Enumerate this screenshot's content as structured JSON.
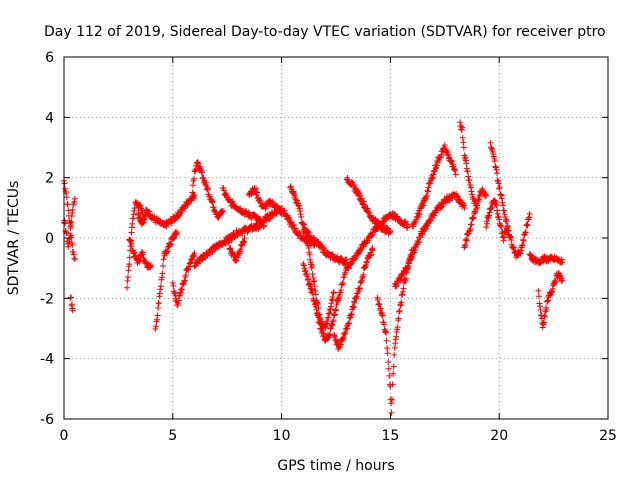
{
  "chart_data": {
    "type": "scatter",
    "title": "Day 112 of 2019, Sidereal Day-to-day VTEC variation (SDTVAR) for receiver ptro",
    "xlabel": "GPS time / hours",
    "ylabel": "SDTVAR / TECUs",
    "xlim": [
      0,
      25
    ],
    "ylim": [
      -6,
      6
    ],
    "xticks": [
      0,
      5,
      10,
      15,
      20,
      25
    ],
    "yticks": [
      -6,
      -4,
      -2,
      0,
      2,
      4,
      6
    ],
    "grid": true,
    "marker": "+",
    "series_color": "#ff0000",
    "series": [
      {
        "name": "SDTVAR",
        "tracks": [
          [
            [
              0.0,
              1.9
            ],
            [
              0.1,
              1.5
            ],
            [
              0.2,
              0.9
            ],
            [
              0.3,
              0.3
            ],
            [
              0.4,
              -0.4
            ],
            [
              0.5,
              -0.7
            ]
          ],
          [
            [
              0.0,
              0.6
            ],
            [
              0.1,
              0.2
            ],
            [
              0.2,
              -0.3
            ],
            [
              0.3,
              0.3
            ],
            [
              0.4,
              1.0
            ],
            [
              0.5,
              1.3
            ]
          ],
          [
            [
              0.3,
              -1.9
            ],
            [
              0.35,
              -2.2
            ],
            [
              0.4,
              -2.4
            ]
          ],
          [
            [
              2.9,
              -1.6
            ],
            [
              3.0,
              -0.8
            ],
            [
              3.1,
              0.2
            ],
            [
              3.2,
              0.8
            ],
            [
              3.3,
              1.2
            ],
            [
              3.5,
              1.0
            ],
            [
              3.7,
              0.6
            ]
          ],
          [
            [
              3.0,
              0.0
            ],
            [
              3.2,
              -0.5
            ],
            [
              3.4,
              -0.8
            ],
            [
              3.6,
              -0.5
            ],
            [
              3.8,
              -0.9
            ],
            [
              4.0,
              -0.9
            ]
          ],
          [
            [
              3.4,
              0.8
            ],
            [
              3.6,
              0.5
            ],
            [
              3.8,
              0.9
            ],
            [
              4.2,
              0.6
            ],
            [
              4.6,
              0.4
            ],
            [
              5.0,
              0.6
            ],
            [
              5.4,
              0.9
            ],
            [
              5.8,
              1.3
            ],
            [
              6.0,
              1.4
            ]
          ],
          [
            [
              4.2,
              -3.0
            ],
            [
              4.3,
              -2.5
            ],
            [
              4.4,
              -1.8
            ],
            [
              4.5,
              -1.3
            ],
            [
              4.6,
              -0.6
            ],
            [
              4.8,
              -0.3
            ],
            [
              5.0,
              0.0
            ],
            [
              5.2,
              0.2
            ]
          ],
          [
            [
              5.0,
              -1.5
            ],
            [
              5.1,
              -1.9
            ],
            [
              5.2,
              -2.2
            ],
            [
              5.3,
              -2.0
            ],
            [
              5.4,
              -1.7
            ],
            [
              5.6,
              -1.2
            ],
            [
              5.8,
              -0.8
            ],
            [
              6.0,
              -0.5
            ]
          ],
          [
            [
              5.9,
              1.6
            ],
            [
              6.0,
              2.2
            ],
            [
              6.1,
              2.5
            ],
            [
              6.3,
              2.2
            ],
            [
              6.5,
              1.8
            ],
            [
              6.7,
              1.4
            ],
            [
              6.9,
              1.0
            ],
            [
              7.1,
              0.7
            ],
            [
              7.3,
              0.9
            ]
          ],
          [
            [
              6.0,
              -0.9
            ],
            [
              6.4,
              -0.6
            ],
            [
              6.8,
              -0.4
            ],
            [
              7.2,
              -0.2
            ],
            [
              7.6,
              0.0
            ],
            [
              8.0,
              0.2
            ],
            [
              8.5,
              0.3
            ],
            [
              9.0,
              0.4
            ]
          ],
          [
            [
              7.3,
              1.6
            ],
            [
              7.6,
              1.2
            ],
            [
              8.0,
              1.0
            ],
            [
              8.4,
              0.8
            ],
            [
              8.8,
              0.7
            ],
            [
              9.2,
              0.4
            ]
          ],
          [
            [
              7.5,
              0.0
            ],
            [
              7.7,
              -0.5
            ],
            [
              7.9,
              -0.7
            ],
            [
              8.1,
              -0.4
            ],
            [
              8.3,
              0.0
            ]
          ],
          [
            [
              8.5,
              1.5
            ],
            [
              8.8,
              1.6
            ],
            [
              9.0,
              1.2
            ],
            [
              9.2,
              1.0
            ],
            [
              9.5,
              1.2
            ],
            [
              9.8,
              1.0
            ],
            [
              10.0,
              0.8
            ]
          ],
          [
            [
              8.8,
              0.4
            ],
            [
              9.2,
              0.6
            ],
            [
              9.6,
              0.8
            ],
            [
              10.0,
              1.0
            ],
            [
              10.4,
              0.5
            ],
            [
              10.8,
              0.1
            ],
            [
              11.2,
              -0.1
            ],
            [
              11.6,
              -0.2
            ]
          ],
          [
            [
              10.4,
              1.7
            ],
            [
              10.6,
              1.4
            ],
            [
              10.8,
              1.0
            ],
            [
              11.0,
              0.3
            ],
            [
              11.4,
              0.0
            ],
            [
              11.8,
              -0.3
            ],
            [
              12.2,
              -0.6
            ],
            [
              12.6,
              -0.7
            ],
            [
              13.0,
              -0.8
            ]
          ],
          [
            [
              11.0,
              -0.8
            ],
            [
              11.2,
              -1.4
            ],
            [
              11.4,
              -1.8
            ],
            [
              11.6,
              -2.4
            ],
            [
              11.8,
              -3.0
            ],
            [
              12.0,
              -3.4
            ],
            [
              12.2,
              -3.2
            ],
            [
              12.4,
              -2.6
            ],
            [
              12.6,
              -2.0
            ],
            [
              12.8,
              -1.5
            ],
            [
              13.0,
              -1.0
            ]
          ],
          [
            [
              11.0,
              0.5
            ],
            [
              11.2,
              -0.2
            ],
            [
              11.4,
              -1.0
            ],
            [
              11.6,
              -2.0
            ],
            [
              11.8,
              -2.8
            ],
            [
              12.0,
              -3.0
            ],
            [
              12.2,
              -2.5
            ],
            [
              12.4,
              -1.8
            ]
          ],
          [
            [
              12.4,
              -3.2
            ],
            [
              12.6,
              -3.6
            ],
            [
              12.8,
              -3.4
            ],
            [
              13.0,
              -3.0
            ],
            [
              13.2,
              -2.5
            ],
            [
              13.4,
              -2.0
            ],
            [
              13.6,
              -1.6
            ],
            [
              13.8,
              -1.0
            ],
            [
              14.0,
              -0.6
            ],
            [
              14.2,
              -0.4
            ]
          ],
          [
            [
              13.0,
              2.0
            ],
            [
              13.2,
              1.8
            ],
            [
              13.5,
              1.5
            ],
            [
              13.8,
              1.1
            ],
            [
              14.1,
              0.7
            ],
            [
              14.4,
              0.5
            ],
            [
              14.7,
              0.3
            ],
            [
              15.0,
              0.2
            ]
          ],
          [
            [
              13.0,
              -1.0
            ],
            [
              13.4,
              -0.6
            ],
            [
              13.8,
              -0.2
            ],
            [
              14.2,
              0.2
            ],
            [
              14.6,
              0.5
            ],
            [
              15.0,
              0.8
            ],
            [
              15.4,
              0.6
            ],
            [
              15.8,
              0.4
            ]
          ],
          [
            [
              14.4,
              -2.0
            ],
            [
              14.6,
              -2.5
            ],
            [
              14.8,
              -3.2
            ],
            [
              15.0,
              -5.0
            ],
            [
              15.05,
              -5.8
            ],
            [
              15.1,
              -4.8
            ],
            [
              15.2,
              -3.6
            ],
            [
              15.4,
              -2.5
            ],
            [
              15.6,
              -1.6
            ],
            [
              15.8,
              -1.0
            ],
            [
              16.0,
              -0.4
            ]
          ],
          [
            [
              15.2,
              -1.6
            ],
            [
              15.5,
              -1.3
            ],
            [
              15.8,
              -0.9
            ],
            [
              16.1,
              -0.4
            ],
            [
              16.4,
              0.1
            ],
            [
              16.8,
              0.6
            ],
            [
              17.2,
              1.0
            ],
            [
              17.6,
              1.3
            ],
            [
              18.0,
              1.4
            ],
            [
              18.4,
              1.0
            ]
          ],
          [
            [
              16.0,
              0.4
            ],
            [
              16.3,
              0.8
            ],
            [
              16.6,
              1.3
            ],
            [
              16.9,
              2.0
            ],
            [
              17.2,
              2.6
            ],
            [
              17.5,
              3.0
            ],
            [
              17.8,
              2.5
            ],
            [
              18.0,
              2.1
            ]
          ],
          [
            [
              18.2,
              3.8
            ],
            [
              18.3,
              3.6
            ],
            [
              18.4,
              2.8
            ],
            [
              18.6,
              2.0
            ],
            [
              18.8,
              1.3
            ],
            [
              19.0,
              1.0
            ]
          ],
          [
            [
              18.4,
              -0.3
            ],
            [
              18.6,
              0.2
            ],
            [
              18.8,
              0.7
            ],
            [
              19.0,
              1.2
            ],
            [
              19.2,
              1.6
            ],
            [
              19.4,
              1.4
            ]
          ],
          [
            [
              19.6,
              3.1
            ],
            [
              19.8,
              2.5
            ],
            [
              20.0,
              1.7
            ],
            [
              20.2,
              1.0
            ],
            [
              20.4,
              0.3
            ],
            [
              20.6,
              -0.2
            ],
            [
              20.8,
              -0.6
            ],
            [
              21.0,
              -0.4
            ],
            [
              21.2,
              0.2
            ],
            [
              21.4,
              0.8
            ]
          ],
          [
            [
              19.4,
              0.4
            ],
            [
              19.6,
              1.0
            ],
            [
              19.8,
              1.3
            ],
            [
              20.0,
              0.6
            ],
            [
              20.2,
              0.0
            ],
            [
              20.4,
              0.4
            ]
          ],
          [
            [
              21.4,
              -0.6
            ],
            [
              21.6,
              -0.7
            ],
            [
              21.8,
              -0.8
            ],
            [
              22.0,
              -0.7
            ],
            [
              22.3,
              -0.7
            ],
            [
              22.6,
              -0.7
            ],
            [
              22.9,
              -0.8
            ]
          ],
          [
            [
              21.8,
              -1.8
            ],
            [
              21.9,
              -2.4
            ],
            [
              22.0,
              -2.9
            ],
            [
              22.1,
              -2.6
            ],
            [
              22.2,
              -2.2
            ],
            [
              22.3,
              -1.9
            ],
            [
              22.4,
              -1.8
            ],
            [
              22.5,
              -1.5
            ],
            [
              22.7,
              -1.2
            ],
            [
              22.9,
              -1.4
            ]
          ]
        ]
      }
    ]
  }
}
